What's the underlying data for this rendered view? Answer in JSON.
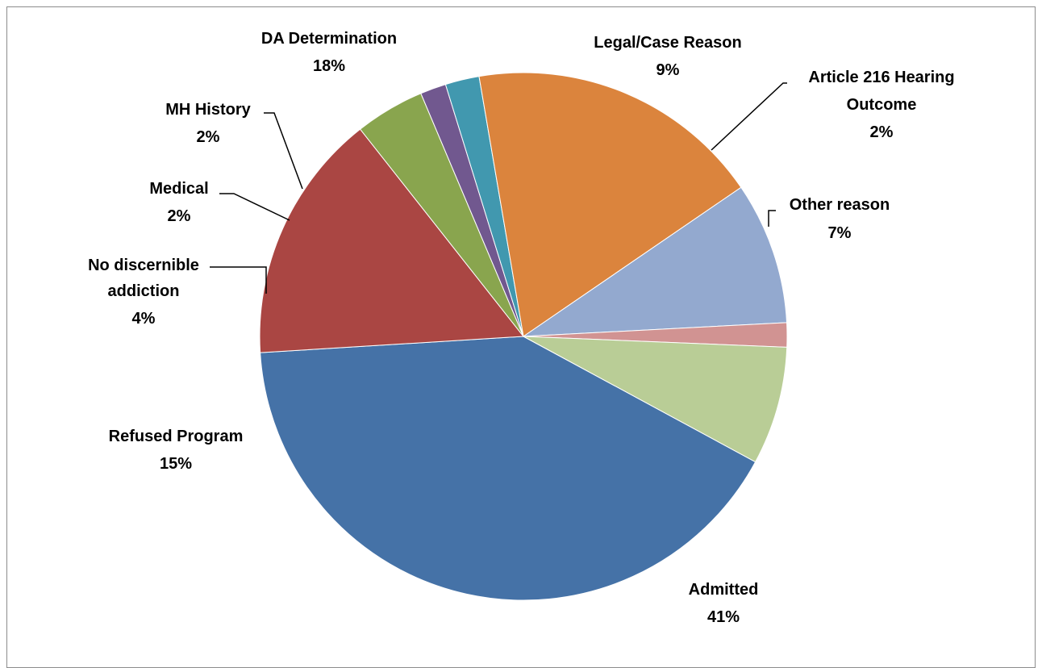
{
  "chart_data": {
    "type": "pie",
    "title": "",
    "slices": [
      {
        "label": "Admitted",
        "pct_label": "41%",
        "value": 41.5,
        "color": "#4572A7"
      },
      {
        "label": "Refused Program",
        "pct_label": "15%",
        "value": 15.5,
        "color": "#AA4643"
      },
      {
        "label": "No discernible addiction",
        "pct_label": "4%",
        "value": 4.3,
        "color": "#89A54E"
      },
      {
        "label": "Medical",
        "pct_label": "2%",
        "value": 1.6,
        "color": "#71588F"
      },
      {
        "label": "MH History",
        "pct_label": "2%",
        "value": 2.1,
        "color": "#4198AF"
      },
      {
        "label": "DA Determination",
        "pct_label": "18%",
        "value": 18.3,
        "color": "#DB843D"
      },
      {
        "label": "Legal/Case Reason",
        "pct_label": "9%",
        "value": 8.8,
        "color": "#93A9CF"
      },
      {
        "label": "Article 216 Hearing Outcome",
        "pct_label": "2%",
        "value": 1.5,
        "color": "#D19392"
      },
      {
        "label": "Other reason",
        "pct_label": "7%",
        "value": 7.3,
        "color": "#B9CD96"
      }
    ]
  }
}
